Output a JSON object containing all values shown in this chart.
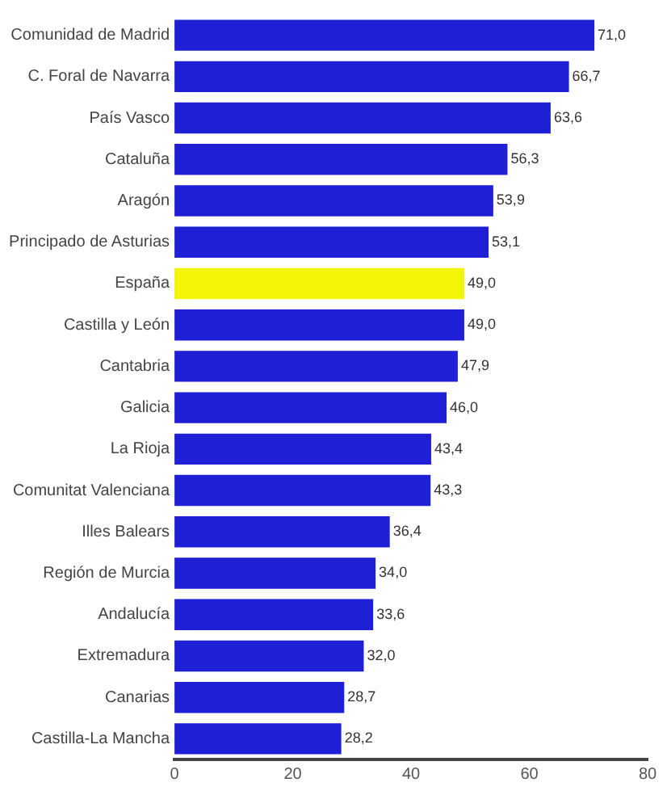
{
  "chart_data": {
    "type": "bar",
    "orientation": "horizontal",
    "categories": [
      "Comunidad de Madrid",
      "C. Foral de Navarra",
      "País Vasco",
      "Cataluña",
      "Aragón",
      "Principado de Asturias",
      "España",
      "Castilla y León",
      "Cantabria",
      "Galicia",
      "La Rioja",
      "Comunitat Valenciana",
      "Illes Balears",
      "Región de Murcia",
      "Andalucía",
      "Extremadura",
      "Canarias",
      "Castilla-La Mancha"
    ],
    "values": [
      71.0,
      66.7,
      63.6,
      56.3,
      53.9,
      53.1,
      49.0,
      49.0,
      47.9,
      46.0,
      43.4,
      43.3,
      36.4,
      34.0,
      33.6,
      32.0,
      28.7,
      28.2
    ],
    "colors": [
      "#1f1fd6",
      "#1f1fd6",
      "#1f1fd6",
      "#1f1fd6",
      "#1f1fd6",
      "#1f1fd6",
      "#f5f50a",
      "#1f1fd6",
      "#1f1fd6",
      "#1f1fd6",
      "#1f1fd6",
      "#1f1fd6",
      "#1f1fd6",
      "#1f1fd6",
      "#1f1fd6",
      "#1f1fd6",
      "#1f1fd6",
      "#1f1fd6"
    ],
    "value_labels": [
      "71,0",
      "66,7",
      "63,6",
      "56,3",
      "53,9",
      "53,1",
      "49,0",
      "49,0",
      "47,9",
      "46,0",
      "43,4",
      "43,3",
      "36,4",
      "34,0",
      "33,6",
      "32,0",
      "28,7",
      "28,2"
    ],
    "xlim": [
      0,
      80
    ],
    "xticks": [
      0,
      20,
      40,
      60,
      80
    ],
    "grid": false,
    "legend": false
  }
}
